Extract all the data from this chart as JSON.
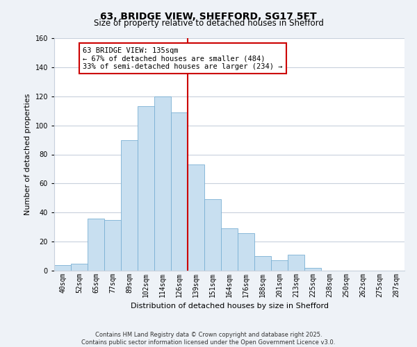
{
  "title": "63, BRIDGE VIEW, SHEFFORD, SG17 5FT",
  "subtitle": "Size of property relative to detached houses in Shefford",
  "xlabel": "Distribution of detached houses by size in Shefford",
  "ylabel": "Number of detached properties",
  "bin_labels": [
    "40sqm",
    "52sqm",
    "65sqm",
    "77sqm",
    "89sqm",
    "102sqm",
    "114sqm",
    "126sqm",
    "139sqm",
    "151sqm",
    "164sqm",
    "176sqm",
    "188sqm",
    "201sqm",
    "213sqm",
    "225sqm",
    "238sqm",
    "250sqm",
    "262sqm",
    "275sqm",
    "287sqm"
  ],
  "bar_values": [
    4,
    5,
    36,
    35,
    90,
    113,
    120,
    109,
    73,
    49,
    29,
    26,
    10,
    7,
    11,
    2,
    0,
    0,
    0,
    0,
    0
  ],
  "bar_color": "#c8dff0",
  "bar_edge_color": "#7ab0d4",
  "vline_color": "#cc0000",
  "annotation_line1": "63 BRIDGE VIEW: 135sqm",
  "annotation_line2": "← 67% of detached houses are smaller (484)",
  "annotation_line3": "33% of semi-detached houses are larger (234) →",
  "annotation_box_color": "#ffffff",
  "annotation_box_edge": "#cc0000",
  "ylim": [
    0,
    160
  ],
  "yticks": [
    0,
    20,
    40,
    60,
    80,
    100,
    120,
    140,
    160
  ],
  "footer_line1": "Contains HM Land Registry data © Crown copyright and database right 2025.",
  "footer_line2": "Contains public sector information licensed under the Open Government Licence v3.0.",
  "bg_color": "#eef2f7",
  "plot_bg_color": "#ffffff",
  "grid_color": "#c8d0dc",
  "title_fontsize": 10,
  "subtitle_fontsize": 8.5,
  "axis_label_fontsize": 8,
  "tick_fontsize": 7,
  "annotation_fontsize": 7.5,
  "footer_fontsize": 6
}
